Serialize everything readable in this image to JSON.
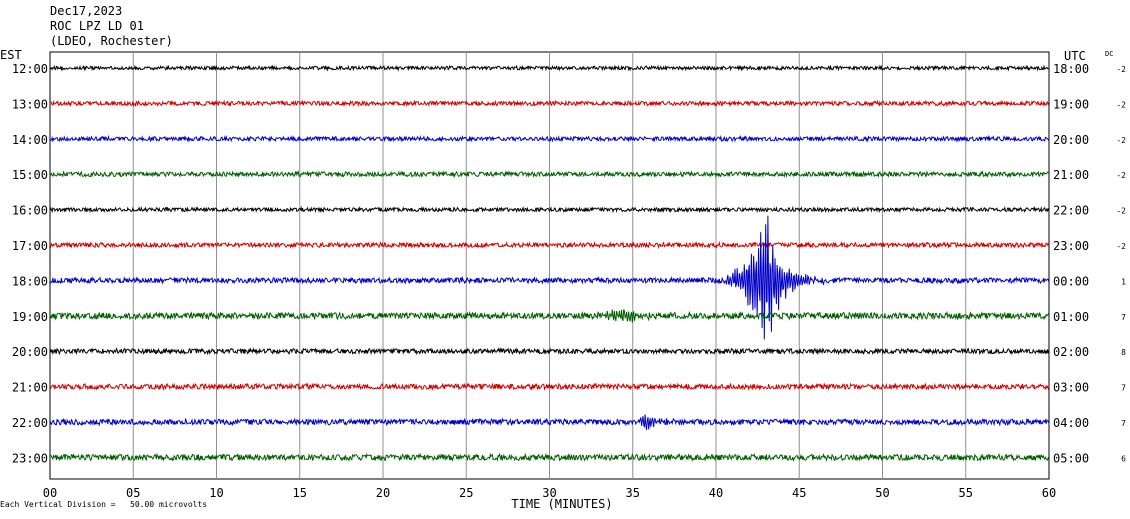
{
  "header": {
    "date": "Dec17,2023",
    "station": "ROC LPZ LD 01",
    "network": "(LDEO, Rochester)"
  },
  "left_axis_title": "EST",
  "right_axis_title": "UTC",
  "dc_title": "DC",
  "footnote": "Each Vertical Division =   50.00 microvolts",
  "chart_data": {
    "type": "line",
    "title": "Dec17,2023 ROC LPZ LD 01 (LDEO, Rochester)",
    "xlabel": "TIME (MINUTES)",
    "xlim": [
      0,
      60
    ],
    "x_ticks": [
      "00",
      "05",
      "10",
      "15",
      "20",
      "25",
      "30",
      "35",
      "40",
      "45",
      "50",
      "55",
      "60"
    ],
    "grid": true,
    "rows": [
      {
        "est": "12:00",
        "utc": "18:00",
        "dc": "-2",
        "color": "#000000",
        "noise": 0.1
      },
      {
        "est": "13:00",
        "utc": "19:00",
        "dc": "-2",
        "color": "#d00000",
        "noise": 0.12
      },
      {
        "est": "14:00",
        "utc": "20:00",
        "dc": "-2",
        "color": "#0000c8",
        "noise": 0.12
      },
      {
        "est": "15:00",
        "utc": "21:00",
        "dc": "-2",
        "color": "#006000",
        "noise": 0.13
      },
      {
        "est": "16:00",
        "utc": "22:00",
        "dc": "-2",
        "color": "#000000",
        "noise": 0.11
      },
      {
        "est": "17:00",
        "utc": "23:00",
        "dc": "-2",
        "color": "#d00000",
        "noise": 0.13
      },
      {
        "est": "18:00",
        "utc": "00:00",
        "dc": "1",
        "color": "#0000c8",
        "noise": 0.15
      },
      {
        "est": "19:00",
        "utc": "01:00",
        "dc": "7",
        "color": "#006000",
        "noise": 0.18
      },
      {
        "est": "20:00",
        "utc": "02:00",
        "dc": "8",
        "color": "#000000",
        "noise": 0.14
      },
      {
        "est": "21:00",
        "utc": "03:00",
        "dc": "7",
        "color": "#d00000",
        "noise": 0.15
      },
      {
        "est": "22:00",
        "utc": "04:00",
        "dc": "7",
        "color": "#0000c8",
        "noise": 0.16
      },
      {
        "est": "23:00",
        "utc": "05:00",
        "dc": "6",
        "color": "#006000",
        "noise": 0.17
      }
    ],
    "events": [
      {
        "row": 6,
        "start_min": 40.0,
        "peak_min": 43.0,
        "end_min": 55.0,
        "peak_amp": 4.2,
        "note": "earthquake arrival"
      },
      {
        "row": 7,
        "start_min": 31.5,
        "peak_min": 34.5,
        "end_min": 37.0,
        "peak_amp": 0.5
      },
      {
        "row": 10,
        "start_min": 35.0,
        "peak_min": 35.8,
        "end_min": 38.0,
        "peak_amp": 0.5
      }
    ]
  }
}
